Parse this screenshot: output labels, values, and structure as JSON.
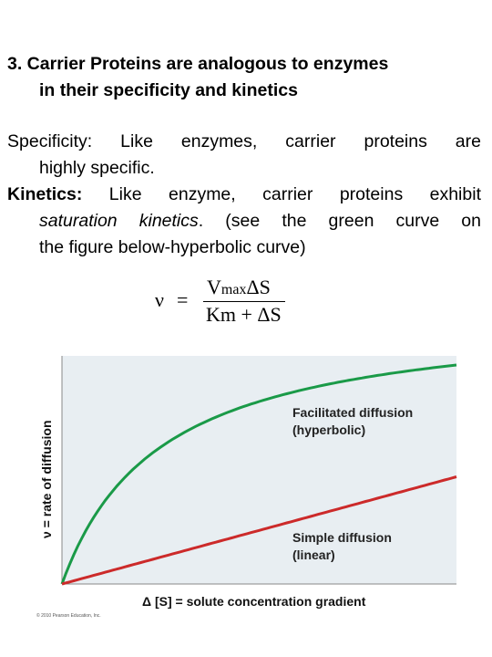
{
  "heading": {
    "line1": "3.  Carrier Proteins are analogous to enzymes",
    "line2": "in their specificity and kinetics"
  },
  "specificity": {
    "term": "Specificity",
    "rest_line1": ": Like enzymes, carrier proteins are",
    "line2": "highly specific."
  },
  "kinetics": {
    "term": "Kinetics:",
    "rest_line1": "   Like enzyme, carrier proteins exhibit",
    "italic": "saturation kinetics",
    "rest_line2": ". (see the green curve on",
    "line3": "the figure below-hyperbolic curve)"
  },
  "formula": {
    "lhs": "ν",
    "equals": "=",
    "numerator_v": "V",
    "numerator_sub": "max",
    "numerator_rest": "ΔS",
    "denominator": "Km + ΔS"
  },
  "chart_data": {
    "type": "line",
    "xlabel": "Δ [S] = solute concentration gradient",
    "ylabel": "ν = rate of diffusion",
    "series": [
      {
        "name": "Facilitated diffusion (hyperbolic)",
        "label_line1": "Facilitated diffusion",
        "label_line2": "(hyperbolic)",
        "color": "#1a9a48",
        "shape": "hyperbolic",
        "vmax": 1.2,
        "km": 0.25
      },
      {
        "name": "Simple diffusion (linear)",
        "label_line1": "Simple diffusion",
        "label_line2": "(linear)",
        "color": "#cc2a2a",
        "shape": "linear",
        "slope": 0.47
      }
    ],
    "x_range": [
      0,
      1
    ],
    "y_range": [
      0,
      1
    ],
    "grid": false,
    "background": "#e8eef2",
    "credit": "© 2010 Pearson Education, Inc."
  }
}
